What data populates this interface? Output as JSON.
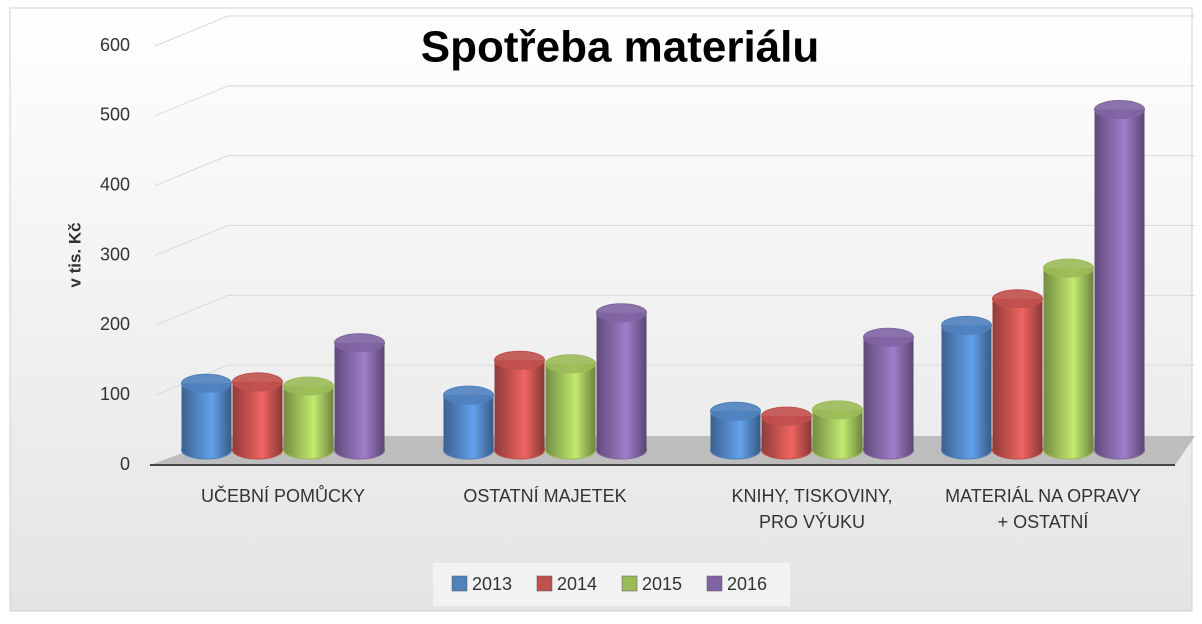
{
  "chart_data": {
    "type": "bar3d",
    "title": "Spotřeba materiálu",
    "y_label": "v tis. Kč",
    "categories": [
      "UČEBNÍ POMŮCKY",
      "OSTATNÍ MAJETEK",
      "KNIHY, TISKOVINY,\nPRO VÝUKU",
      "MATERIÁL NA OPRAVY\n+ OSTATNÍ"
    ],
    "series": [
      {
        "name": "2013",
        "color": "#4f81bd",
        "values": [
          117,
          100,
          77,
          200
        ]
      },
      {
        "name": "2014",
        "color": "#c0504d",
        "values": [
          119,
          150,
          70,
          238
        ]
      },
      {
        "name": "2015",
        "color": "#9bbb59",
        "values": [
          113,
          145,
          79,
          282
        ]
      },
      {
        "name": "2016",
        "color": "#8064a2",
        "values": [
          175,
          218,
          183,
          509
        ]
      }
    ],
    "ylim": [
      0,
      600
    ],
    "yticks": [
      0,
      100,
      200,
      300,
      400,
      500,
      600
    ],
    "grid": true,
    "legend": "bottom"
  }
}
